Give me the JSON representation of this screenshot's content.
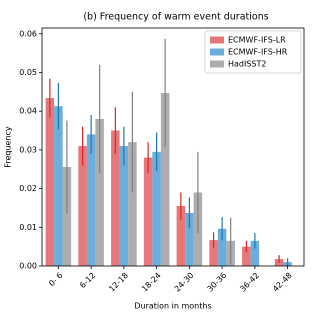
{
  "chart_data": {
    "type": "bar",
    "title": "(b) Frequency of warm event durations",
    "x_label": "Duration in months",
    "y_label": "Frequency",
    "categories": [
      "0- 6",
      "6-12",
      "12-18",
      "18-24",
      "24-30",
      "30-36",
      "36-42",
      "42-48"
    ],
    "series": [
      {
        "name": "ECMWF-IFS-LR",
        "color": "#e8777b",
        "error_color": "#d62728",
        "values": [
          0.0434,
          0.031,
          0.035,
          0.028,
          0.0155,
          0.0067,
          0.005,
          0.0018
        ],
        "errors": [
          0.005,
          0.005,
          0.006,
          0.004,
          0.0035,
          0.002,
          0.0015,
          0.001
        ]
      },
      {
        "name": "ECMWF-IFS-HR",
        "color": "#6aaed9",
        "error_color": "#1f77b4",
        "values": [
          0.0413,
          0.034,
          0.031,
          0.0295,
          0.0137,
          0.0096,
          0.0065,
          0.001
        ],
        "errors": [
          0.006,
          0.005,
          0.005,
          0.005,
          0.004,
          0.003,
          0.002,
          0.001
        ]
      },
      {
        "name": "HadISST2",
        "color": "#adadad",
        "error_color": "#7f7f7f",
        "values": [
          0.0256,
          0.038,
          0.032,
          0.0447,
          0.019,
          0.0065,
          0,
          0
        ],
        "errors": [
          0.012,
          0.014,
          0.013,
          0.014,
          0.0105,
          0.006,
          0,
          0
        ]
      }
    ],
    "ylim": [
      0,
      0.0615
    ],
    "yticks": [
      {
        "value": 0,
        "label": "0.00"
      },
      {
        "value": 0.01,
        "label": "0.01"
      },
      {
        "value": 0.02,
        "label": "0.02"
      },
      {
        "value": 0.03,
        "label": "0.03"
      },
      {
        "value": 0.04,
        "label": "0.04"
      },
      {
        "value": 0.05,
        "label": "0.05"
      },
      {
        "value": 0.06,
        "label": "0.06"
      }
    ],
    "legend": "upper right",
    "grid": false
  }
}
